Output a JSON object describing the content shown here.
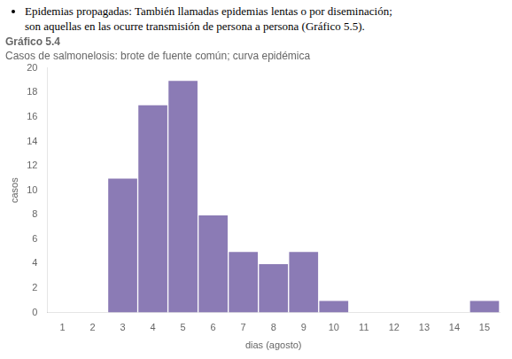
{
  "chart_data": {
    "type": "bar",
    "title": "Gráfico 5.4",
    "subtitle": "Casos de salmonelosis: brote de fuente común; curva epidémica",
    "annotations": [
      "Epidemias propagadas: También llamadas epidemias lentas o por diseminación;",
      "son aquellas en las ocurre transmisión de persona a persona (Gráfico 5.5)."
    ],
    "x_label": "dias (agosto)",
    "y_label": "casos",
    "categories": [
      1,
      2,
      3,
      4,
      5,
      6,
      7,
      8,
      9,
      10,
      11,
      12,
      13,
      14,
      15
    ],
    "values": [
      0,
      0,
      11,
      17,
      19,
      8,
      5,
      4,
      5,
      1,
      0,
      0,
      0,
      0,
      1
    ],
    "color": "#8B7BB5",
    "ylim": [
      0,
      20
    ],
    "yticks": [
      0,
      2,
      4,
      6,
      8,
      10,
      12,
      14,
      16,
      18,
      20
    ],
    "grid": false
  }
}
